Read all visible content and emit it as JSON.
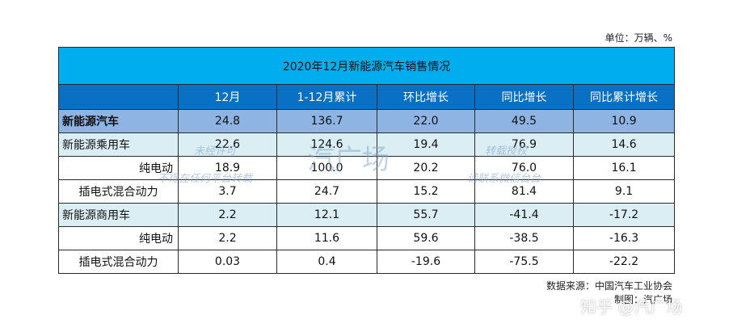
{
  "unit_label": "单位：万辆、%",
  "table": {
    "title": "2020年12月新能源汽车销售情况",
    "columns": [
      "",
      "12月",
      "1-12月累计",
      "环比增长",
      "同比增长",
      "同比累计增长"
    ],
    "rows": [
      {
        "label": "新能源汽车",
        "values": [
          "24.8",
          "136.7",
          "22.0",
          "49.5",
          "10.9"
        ]
      },
      {
        "label": "新能源乘用车",
        "values": [
          "22.6",
          "124.6",
          "19.4",
          "76.9",
          "14.6"
        ]
      },
      {
        "label": "纯电动",
        "values": [
          "18.9",
          "100.0",
          "20.2",
          "76.0",
          "16.1"
        ]
      },
      {
        "label": "插电式混合动力",
        "values": [
          "3.7",
          "24.7",
          "15.2",
          "81.4",
          "9.1"
        ]
      },
      {
        "label": "新能源商用车",
        "values": [
          "2.2",
          "12.1",
          "55.7",
          "-41.4",
          "-17.2"
        ]
      },
      {
        "label": "纯电动",
        "values": [
          "2.2",
          "11.6",
          "59.6",
          "-38.5",
          "-16.3"
        ]
      },
      {
        "label": "插电式混合动力",
        "values": [
          "0.03",
          "0.4",
          "-19.6",
          "-75.5",
          "-22.2"
        ]
      }
    ]
  },
  "source_label": "数据来源：中国汽车工业协会",
  "author_label": "制图：汽广场",
  "zhihu_watermark": "知乎 @汽广场",
  "watermarks": {
    "w1": "未经许可",
    "w2": "不得在任何平台转载",
    "w3": "转载授权",
    "w4": "请联系微信台台",
    "big": "汽广场"
  }
}
